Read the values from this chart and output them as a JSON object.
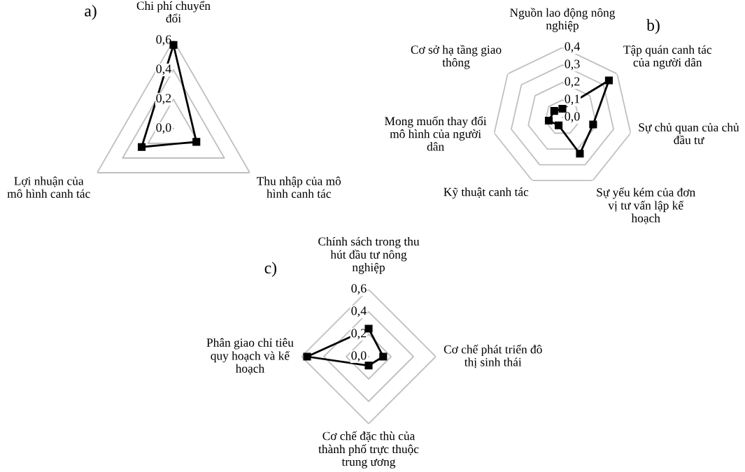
{
  "chart_data": [
    {
      "type": "radar",
      "title": "a)",
      "categories": [
        "Chi phí chuyển\nđổi",
        "Thu nhập của mô\nhình canh tác",
        "Lợi nhuận của\nmô hình canh tác"
      ],
      "series": [
        {
          "color": "#000000",
          "values": [
            0.57,
            0.18,
            0.25
          ]
        }
      ],
      "ylim": [
        0,
        0.6
      ],
      "yticks": [
        {
          "value": 0,
          "label": "0,0"
        },
        {
          "value": 0.2,
          "label": "0,2"
        },
        {
          "value": 0.4,
          "label": "0,4"
        },
        {
          "value": 0.6,
          "label": "0,6"
        }
      ],
      "grid": true,
      "marker": "square",
      "line_style": "solid",
      "legend": false
    },
    {
      "type": "radar",
      "title": "b)",
      "categories": [
        "Nguồn lao động nông\nnghiệp",
        "Tập quán canh tác\ncủa người dân",
        "Sự chủ quan của chủ\nđầu tư",
        "Sự yếu kém của đơn\nvị tư vấn lập kế\nhoạch",
        "Kỹ thuật canh tác",
        "Mong muốn thay đổi\nmô hình của người\ndân",
        "Cơ sở hạ tầng giao\nthông"
      ],
      "series": [
        {
          "color": "#000000",
          "values": [
            0.05,
            0.34,
            0.18,
            0.23,
            0.05,
            0.08,
            0.06
          ]
        }
      ],
      "ylim": [
        0,
        0.4
      ],
      "yticks": [
        {
          "value": 0,
          "label": "0,0"
        },
        {
          "value": 0.1,
          "label": "0,1"
        },
        {
          "value": 0.2,
          "label": "0,2"
        },
        {
          "value": 0.3,
          "label": "0,3"
        },
        {
          "value": 0.4,
          "label": "0,4"
        }
      ],
      "grid": true,
      "marker": "square",
      "line_style": "solid",
      "legend": false
    },
    {
      "type": "radar",
      "title": "c)",
      "categories": [
        "Chính sách trong thu\nhút đầu tư nông\nnghiệp",
        "Cơ chế phát triển đô\nthị sinh thái",
        "Cơ chế đặc thù của\nthành phố trực thuộc\ntrung ương",
        "Phân giao chỉ tiêu\nquy hoạch và kế\nhoạch"
      ],
      "series": [
        {
          "color": "#000000",
          "values": [
            0.25,
            0.13,
            0.08,
            0.55
          ]
        }
      ],
      "ylim": [
        0,
        0.6
      ],
      "yticks": [
        {
          "value": 0,
          "label": "0,0"
        },
        {
          "value": 0.2,
          "label": "0,2"
        },
        {
          "value": 0.4,
          "label": "0,4"
        },
        {
          "value": 0.6,
          "label": "0,6"
        }
      ],
      "grid": true,
      "marker": "square",
      "line_style": "solid",
      "legend": false
    }
  ]
}
